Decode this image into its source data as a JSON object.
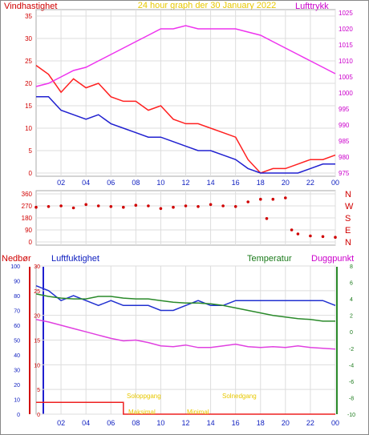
{
  "header": {
    "title": "24 hour graph der   30 January 2022",
    "left_label": "Vindhastighet",
    "right_label": "Lufttrykk"
  },
  "colors": {
    "wind_gust": "#ff2020",
    "wind_avg": "#2020d0",
    "pressure": "#ee33ee",
    "direction": "#d00000",
    "humidity": "#2030d0",
    "temperature": "#2a8a2a",
    "dewpoint": "#e040e0",
    "rain": "#ee2020",
    "title": "#e8c800"
  },
  "x_ticks": [
    "02",
    "04",
    "06",
    "08",
    "10",
    "12",
    "14",
    "16",
    "18",
    "20",
    "22",
    "00"
  ],
  "panel1": {
    "left_ticks": [
      "0",
      "5",
      "10",
      "15",
      "20",
      "25",
      "30",
      "35"
    ],
    "right_ticks": [
      "975",
      "980",
      "985",
      "990",
      "995",
      "1000",
      "1005",
      "1010",
      "1015",
      "1020",
      "1025"
    ]
  },
  "panel2": {
    "left_ticks": [
      "0",
      "90",
      "180",
      "270",
      "360"
    ],
    "dir_labels": [
      "N",
      "W",
      "S",
      "E",
      "N"
    ]
  },
  "panel3": {
    "labels": {
      "rain": "Nedbør",
      "humidity": "Luftfuktighet",
      "temperature": "Temperatur",
      "dewpoint": "Duggpunkt"
    },
    "rain_ticks": [
      "0",
      "10",
      "20",
      "30",
      "40",
      "50",
      "60",
      "70",
      "80",
      "90",
      "100"
    ],
    "hum_ticks": [
      "0",
      "5",
      "10",
      "15",
      "20",
      "25",
      "30"
    ],
    "temp_ticks": [
      "-10",
      "-8",
      "-6",
      "-4",
      "-2",
      "0",
      "2",
      "4",
      "6",
      "8"
    ],
    "annotations": [
      "Soloppgang",
      "Solnedgang",
      "Maksimal",
      "Minimal"
    ]
  },
  "chart_data": [
    {
      "type": "line",
      "title": "Vindhastighet / Lufttrykk",
      "x_hours": [
        0,
        1,
        2,
        3,
        4,
        5,
        6,
        7,
        8,
        9,
        10,
        11,
        12,
        13,
        14,
        15,
        16,
        17,
        18,
        19,
        20,
        21,
        22,
        23,
        24
      ],
      "series": [
        {
          "name": "Vindhastighet",
          "axis": "left",
          "values": [
            24,
            22,
            18,
            21,
            19,
            20,
            17,
            16,
            16,
            14,
            15,
            12,
            11,
            11,
            10,
            9,
            8,
            3,
            0,
            1,
            1,
            2,
            3,
            3,
            4
          ]
        },
        {
          "name": "",
          "axis": "left",
          "values": [
            17,
            17,
            14,
            13,
            12,
            13,
            11,
            10,
            9,
            8,
            8,
            7,
            6,
            5,
            5,
            4,
            3,
            1,
            0,
            0,
            0,
            0,
            1,
            2,
            2
          ]
        },
        {
          "name": "Lufttrykk",
          "axis": "right",
          "values": [
            1002,
            1003,
            1005,
            1007,
            1008,
            1010,
            1012,
            1014,
            1016,
            1018,
            1020,
            1020,
            1021,
            1020,
            1020,
            1020,
            1020,
            1019,
            1018,
            1016,
            1014,
            1012,
            1010,
            1008,
            1006
          ]
        }
      ],
      "ylim_left": [
        0,
        35
      ],
      "ylim_right": [
        975,
        1025
      ]
    },
    {
      "type": "scatter",
      "title": "Vindretning",
      "x_hours": [
        0,
        1,
        2,
        3,
        4,
        5,
        6,
        7,
        8,
        9,
        10,
        11,
        12,
        13,
        14,
        15,
        16,
        17,
        18,
        18.5,
        19,
        20,
        20.5,
        21,
        22,
        23,
        24
      ],
      "values": [
        260,
        265,
        270,
        255,
        280,
        270,
        265,
        260,
        275,
        270,
        250,
        260,
        270,
        265,
        280,
        270,
        265,
        300,
        320,
        175,
        320,
        330,
        90,
        60,
        45,
        40,
        35
      ],
      "ylim": [
        0,
        360
      ]
    },
    {
      "type": "line",
      "title": "Nedbør / Luftfuktighet / Temperatur / Duggpunkt",
      "x_hours": [
        0,
        1,
        2,
        3,
        4,
        5,
        6,
        7,
        8,
        9,
        10,
        11,
        12,
        13,
        14,
        15,
        16,
        17,
        18,
        19,
        20,
        21,
        22,
        23,
        24
      ],
      "series": [
        {
          "name": "Luftfuktighet",
          "axis": "humidity",
          "values": [
            26,
            25,
            23,
            24,
            23,
            22,
            23,
            22,
            22,
            22,
            21,
            21,
            22,
            23,
            22,
            22,
            23,
            23,
            23,
            23,
            23,
            23,
            23,
            23,
            22
          ]
        },
        {
          "name": "Temperatur",
          "axis": "temperature",
          "values": [
            4.6,
            4.3,
            4.1,
            4.0,
            4.0,
            4.3,
            4.3,
            4.1,
            4.0,
            4.0,
            3.8,
            3.6,
            3.5,
            3.5,
            3.4,
            3.2,
            2.9,
            2.6,
            2.3,
            2.0,
            1.8,
            1.6,
            1.5,
            1.3,
            1.3
          ]
        },
        {
          "name": "Duggpunkt",
          "axis": "temperature",
          "values": [
            1.5,
            1.2,
            0.8,
            0.4,
            0.0,
            -0.4,
            -0.8,
            -1.1,
            -1.0,
            -1.3,
            -1.7,
            -1.8,
            -1.6,
            -1.9,
            -1.9,
            -1.7,
            -1.5,
            -1.8,
            -1.9,
            -1.8,
            -1.9,
            -1.7,
            -1.9,
            -2.0,
            -2.1
          ]
        },
        {
          "name": "Nedbør",
          "axis": "rain",
          "values": [
            8,
            8,
            8,
            8,
            8,
            8,
            8,
            0,
            0,
            0,
            0,
            0,
            0,
            0,
            0,
            0,
            0,
            0,
            0,
            0,
            0,
            0,
            0,
            0,
            0
          ]
        }
      ],
      "ylim_rain": [
        0,
        100
      ],
      "ylim_humidity": [
        0,
        30
      ],
      "ylim_temperature": [
        -10,
        8
      ]
    }
  ]
}
